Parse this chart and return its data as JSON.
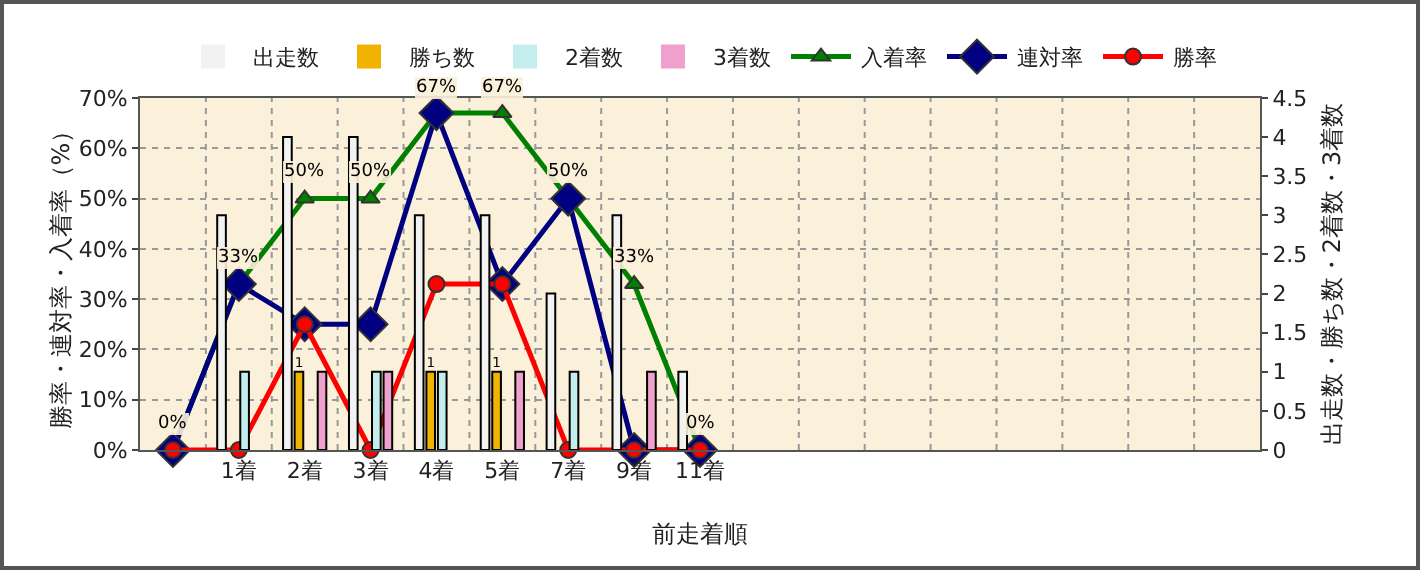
{
  "chart_data": {
    "type": "bar",
    "xlabel": "前走着順",
    "ylabel": "勝率・連対率・入着率（%）",
    "y2label": "出走数・勝ち数・2着数・3着数",
    "categories": [
      null,
      "1着",
      "2着",
      "3着",
      "4着",
      "5着",
      "7着",
      "9着",
      "11着",
      null,
      null,
      null,
      null,
      null,
      null,
      null,
      null
    ],
    "series": [
      {
        "name": "出走数",
        "axis": "y2",
        "color": "#f2f2f2",
        "values": [
          null,
          3,
          4,
          4,
          3,
          3,
          2,
          3,
          1,
          null,
          null,
          null,
          null,
          null,
          null,
          null,
          null
        ]
      },
      {
        "name": "勝ち数",
        "axis": "y2",
        "color": "#f0b400",
        "values": [
          null,
          0,
          1,
          0,
          1,
          1,
          0,
          0,
          0,
          null,
          null,
          null,
          null,
          null,
          null,
          null,
          null
        ],
        "value_labels": [
          null,
          null,
          "1",
          null,
          "1",
          "1",
          null,
          null,
          null,
          null,
          null,
          null,
          null,
          null,
          null,
          null,
          null
        ]
      },
      {
        "name": "2着数",
        "axis": "y2",
        "color": "#c4eeee",
        "values": [
          null,
          1,
          0,
          1,
          1,
          0,
          1,
          0,
          0,
          null,
          null,
          null,
          null,
          null,
          null,
          null,
          null
        ]
      },
      {
        "name": "3着数",
        "axis": "y2",
        "color": "#f0a0cc",
        "values": [
          null,
          0,
          1,
          1,
          0,
          1,
          0,
          1,
          0,
          null,
          null,
          null,
          null,
          null,
          null,
          null,
          null
        ]
      },
      {
        "name": "入着率",
        "type": "line",
        "marker": "triangle",
        "color": "#008000",
        "values": [
          0,
          33,
          50,
          50,
          67,
          67,
          50,
          33,
          0,
          null,
          null,
          null,
          null,
          null,
          null,
          null,
          null
        ],
        "value_labels": [
          "0%",
          "33%",
          "50%",
          "50%",
          "67%",
          "67%",
          "50%",
          "33%",
          "0%",
          null,
          null,
          null,
          null,
          null,
          null,
          null,
          null
        ]
      },
      {
        "name": "連対率",
        "type": "line",
        "marker": "diamond",
        "color": "#000080",
        "values": [
          0,
          33,
          25,
          25,
          67,
          33,
          50,
          0,
          0,
          null,
          null,
          null,
          null,
          null,
          null,
          null,
          null
        ]
      },
      {
        "name": "勝率",
        "type": "line",
        "marker": "circle",
        "color": "#ff0000",
        "values": [
          0,
          0,
          25,
          0,
          33,
          33,
          0,
          0,
          0,
          null,
          null,
          null,
          null,
          null,
          null,
          null,
          null
        ]
      }
    ],
    "ylim": [
      0,
      70
    ],
    "yticks": [
      {
        "value": 0,
        "label": "0%"
      },
      {
        "value": 10,
        "label": "10%"
      },
      {
        "value": 20,
        "label": "20%"
      },
      {
        "value": 30,
        "label": "30%"
      },
      {
        "value": 40,
        "label": "40%"
      },
      {
        "value": 50,
        "label": "50%"
      },
      {
        "value": 60,
        "label": "60%"
      },
      {
        "value": 70,
        "label": "70%"
      }
    ],
    "y2lim": [
      0,
      4.5
    ],
    "y2ticks": [
      0,
      0.5,
      1,
      1.5,
      2,
      2.5,
      3,
      3.5,
      4,
      4.5
    ],
    "grid": true,
    "legend": "top"
  }
}
